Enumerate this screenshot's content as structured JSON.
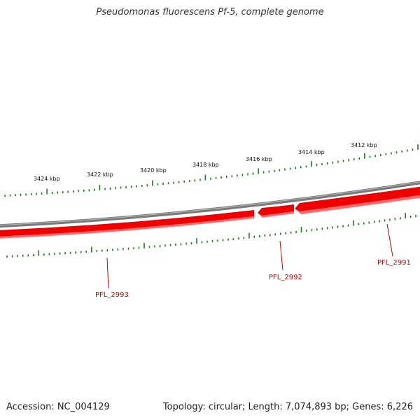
{
  "title": "Pseudomonas fluorescens Pf-5, complete genome",
  "footer": {
    "accession": "Accession: NC_004129",
    "stats": "Topology: circular; Length: 7,074,893 bp; Genes: 6,226"
  },
  "colors": {
    "tick": "#1f7a1f",
    "gene_fill": "#ee0000",
    "gene_edge": "#ff6666",
    "backbone": "#808080",
    "gene_label": "#cc0000"
  },
  "scale_labels": [
    "3424 kbp",
    "3422 kbp",
    "3420 kbp",
    "3418 kbp",
    "3416 kbp",
    "3414 kbp",
    "3412 kbp"
  ],
  "genes": [
    {
      "name": "PFL_2993",
      "strand": "minus"
    },
    {
      "name": "PFL_2992",
      "strand": "minus"
    },
    {
      "name": "PFL_2991",
      "strand": "minus"
    }
  ]
}
